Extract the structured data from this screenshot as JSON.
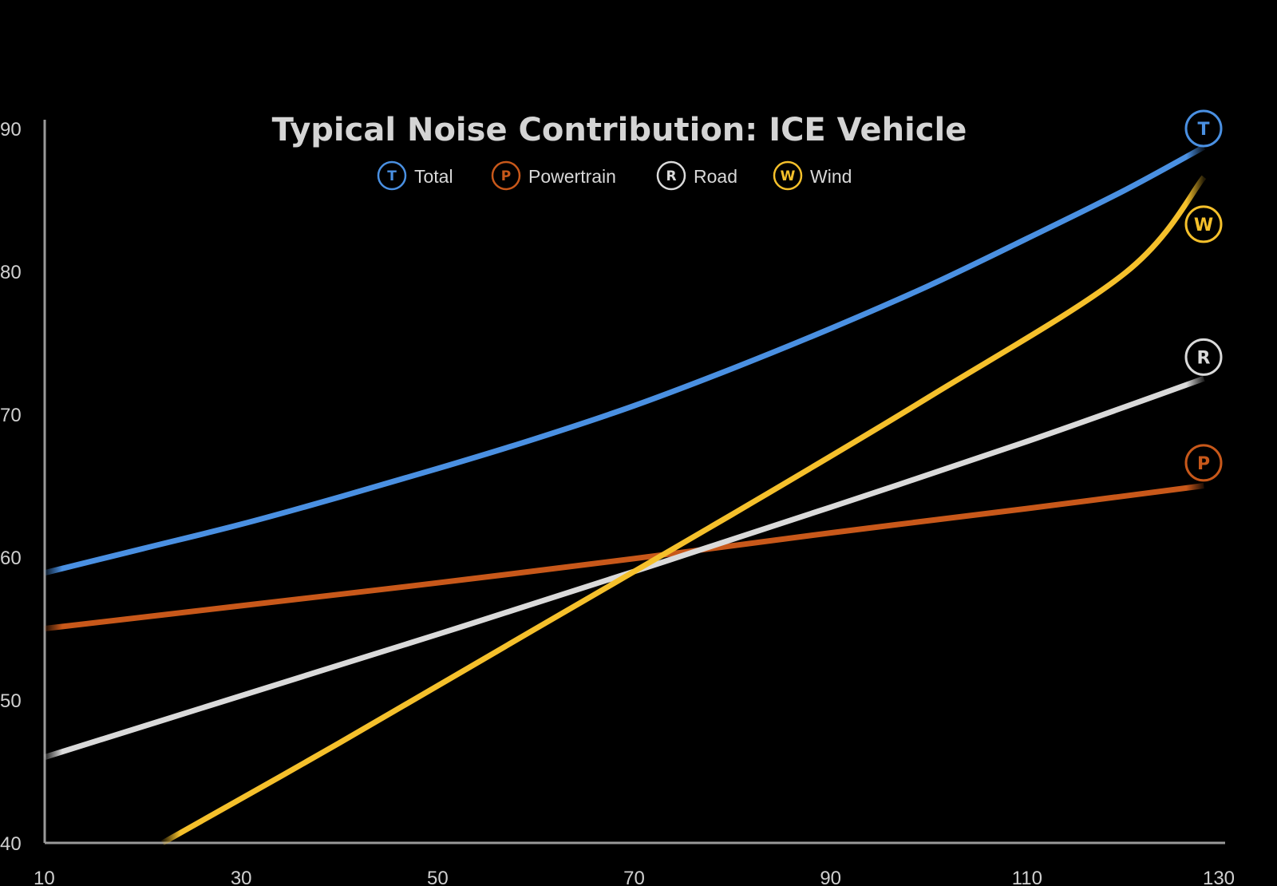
{
  "chart_data": {
    "type": "line",
    "title": "Typical Noise Contribution: ICE Vehicle",
    "xlabel": "",
    "ylabel": "",
    "xlim": [
      10,
      130
    ],
    "ylim": [
      40,
      90
    ],
    "x_ticks": [
      "10",
      "30",
      "50",
      "70",
      "90",
      "110",
      "130"
    ],
    "y_ticks": [
      "40",
      "50",
      "60",
      "70",
      "80",
      "90"
    ],
    "legend_placement": "top-center",
    "series": [
      {
        "name": "Total",
        "badge": "T",
        "color": "#4a90e2",
        "x": [
          10,
          20,
          30,
          40,
          50,
          60,
          70,
          80,
          90,
          100,
          110,
          120,
          128
        ],
        "y": [
          58.9,
          60.6,
          62.3,
          64.2,
          66.2,
          68.3,
          70.6,
          73.2,
          76.0,
          79.0,
          82.3,
          85.7,
          88.7
        ]
      },
      {
        "name": "Powertrain",
        "badge": "P",
        "color": "#c8581a",
        "x": [
          10,
          30,
          50,
          70,
          90,
          110,
          128
        ],
        "y": [
          55.0,
          56.6,
          58.2,
          59.9,
          61.7,
          63.4,
          65.0
        ]
      },
      {
        "name": "Road",
        "badge": "R",
        "color": "#dadada",
        "x": [
          10,
          30,
          50,
          70,
          90,
          110,
          128
        ],
        "y": [
          46.0,
          50.3,
          54.6,
          59.0,
          63.5,
          68.1,
          72.5
        ]
      },
      {
        "name": "Wind",
        "badge": "W",
        "color": "#f5c02b",
        "x": [
          22,
          40,
          60,
          80,
          100,
          120,
          128
        ],
        "y": [
          40.0,
          47.0,
          55.0,
          63.0,
          71.2,
          79.9,
          86.6
        ]
      }
    ],
    "end_badges": [
      {
        "badge": "T",
        "color": "#4a90e2",
        "value": 90.0
      },
      {
        "badge": "W",
        "color": "#f5c02b",
        "value": 83.3
      },
      {
        "badge": "R",
        "color": "#dadada",
        "value": 74.0
      },
      {
        "badge": "P",
        "color": "#c8581a",
        "value": 66.6
      }
    ]
  }
}
